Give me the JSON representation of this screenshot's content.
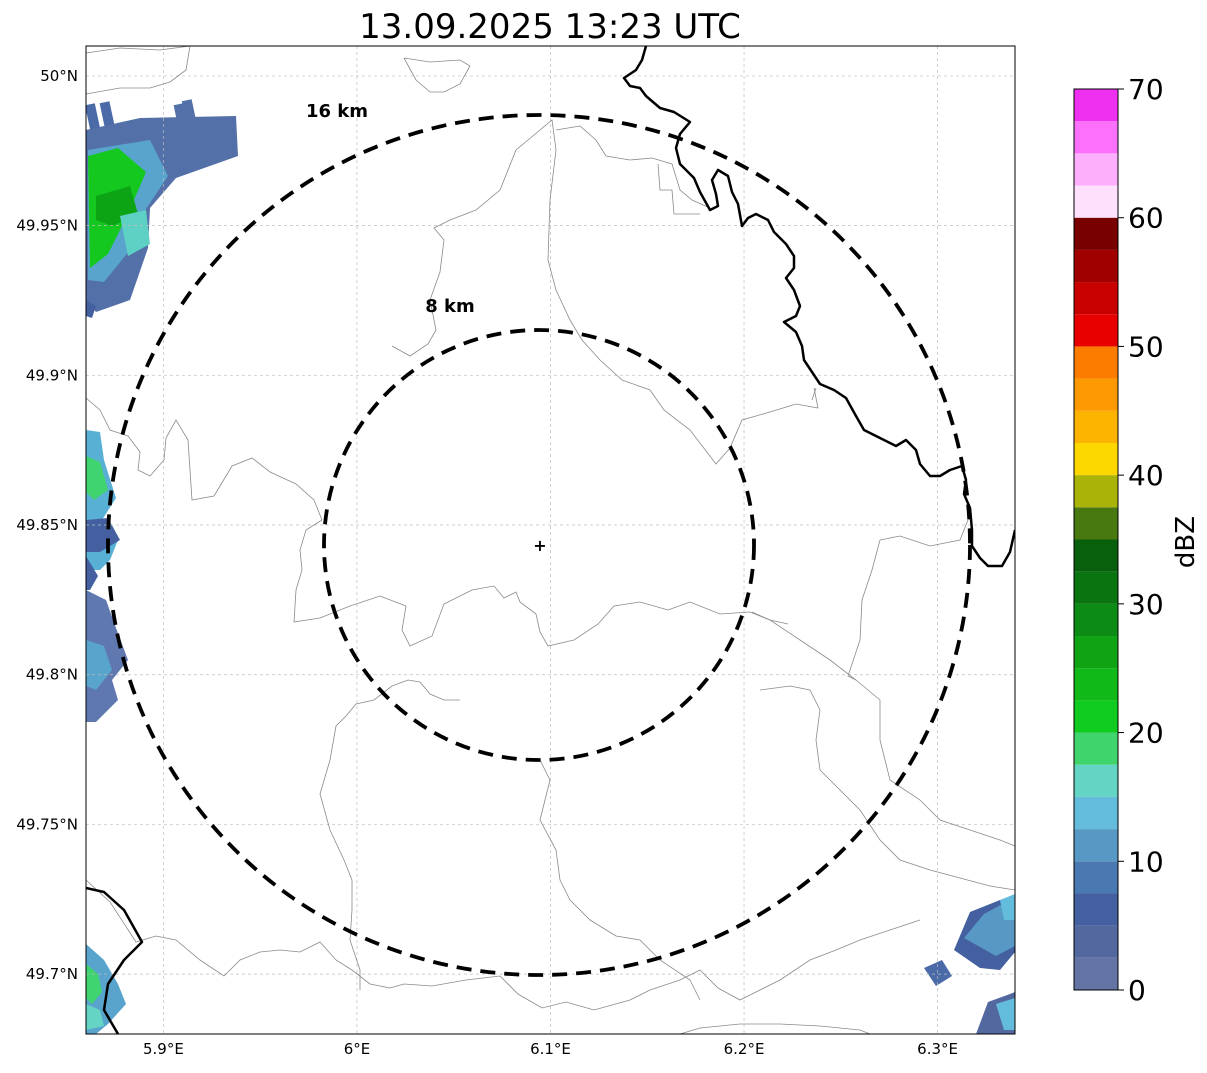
{
  "title": "13.09.2025 13:23 UTC",
  "map": {
    "lon_range": [
      5.86,
      6.34
    ],
    "lat_range": [
      49.68,
      50.01
    ],
    "center": {
      "lon": 6.095,
      "lat": 49.843
    },
    "center_marker": "+",
    "x_ticks": [
      {
        "value": 5.9,
        "label": "5.9°E"
      },
      {
        "value": 6.0,
        "label": "6°E"
      },
      {
        "value": 6.1,
        "label": "6.1°E"
      },
      {
        "value": 6.2,
        "label": "6.2°E"
      },
      {
        "value": 6.3,
        "label": "6.3°E"
      }
    ],
    "y_ticks": [
      {
        "value": 50.0,
        "label": "50°N"
      },
      {
        "value": 49.95,
        "label": "49.95°N"
      },
      {
        "value": 49.9,
        "label": "49.9°N"
      },
      {
        "value": 49.85,
        "label": "49.85°N"
      },
      {
        "value": 49.8,
        "label": "49.8°N"
      },
      {
        "value": 49.75,
        "label": "49.75°N"
      },
      {
        "value": 49.7,
        "label": "49.7°N"
      }
    ],
    "gridlines": true,
    "range_rings": [
      {
        "radius_km": 8,
        "label": "8 km"
      },
      {
        "radius_km": 16,
        "label": "16 km"
      }
    ]
  },
  "colorbar": {
    "label": "dBZ",
    "min": 0,
    "max": 70,
    "step": 2.5,
    "ticks": [
      {
        "value": 0,
        "label": "0"
      },
      {
        "value": 10,
        "label": "10"
      },
      {
        "value": 20,
        "label": "20"
      },
      {
        "value": 30,
        "label": "30"
      },
      {
        "value": 40,
        "label": "40"
      },
      {
        "value": 50,
        "label": "50"
      },
      {
        "value": 60,
        "label": "60"
      },
      {
        "value": 70,
        "label": "70"
      }
    ],
    "colors": [
      "#6474a4",
      "#5468a0",
      "#4460a0",
      "#4a78b0",
      "#5898c4",
      "#64bcdc",
      "#64d4c4",
      "#40d46c",
      "#10cc20",
      "#10b818",
      "#10a414",
      "#0c8c14",
      "#0a7410",
      "#08600c",
      "#487810",
      "#aab408",
      "#fcd800",
      "#fcb400",
      "#fc9800",
      "#fc7c00",
      "#e80000",
      "#c80000",
      "#a00000",
      "#780000",
      "#fce0fc",
      "#fcb0fc",
      "#fc70fc",
      "#f030f0"
    ]
  }
}
